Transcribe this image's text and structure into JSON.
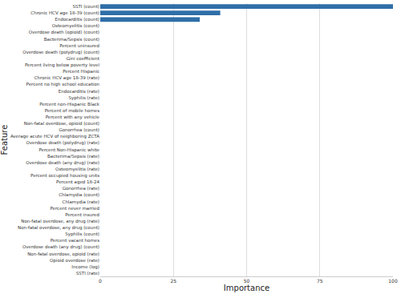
{
  "chart_data": {
    "type": "bar",
    "orientation": "horizontal",
    "x_label": "Importance",
    "y_label": "Feature",
    "categories": [
      "SSTI (count)",
      "Chronic HCV age 18-39 (count)",
      "Endocarditis (count)",
      "Osteomyelitis (count)",
      "Overdose death (opioid) (count)",
      "Bacterima/Sepsis (count)",
      "Percent uninsured",
      "Overdose death (polydrug) (count)",
      "Gini coefficient",
      "Percent living below poverty level",
      "Percent Hispanic",
      "Chronic HCV age 18-39 (rate)",
      "Percent no high school education",
      "Endocarditis (rate)",
      "Syphilis (rate)",
      "Percent non-Hispanic Black",
      "Percent of mobile homes",
      "Percent with any vehicle",
      "Non-fatal overdose, opioid (count)",
      "Gonorrhea (count)",
      "Average acute HCV of neighboring ZCTA",
      "Overdose death (polydrug) (rate)",
      "Percent Non-Hispanic white",
      "Bacterima/Sepsis (rate)",
      "Overdose death (any drug) (rate)",
      "Osteomyelitis (rate)",
      "Percent occupied housing units",
      "Percent aged 18-24",
      "Gonorrhea (rate)",
      "Chlamydia (count)",
      "Chlamydia (rate)",
      "Percent never married",
      "Percent insured",
      "Non-fatal overdose, any drug (rate)",
      "Non-fatal overdose, any drug (count)",
      "Syphilis (count)",
      "Percent vacant homes",
      "Overdose death (any drug) (count)",
      "Non-fatal overdose, opioid (rate)",
      "Opioid overdose (rate)",
      "Income (log)",
      "SSTI (rate)"
    ],
    "values": [
      100,
      41,
      34,
      0,
      0,
      0,
      0,
      0,
      0,
      0,
      0,
      0,
      0,
      0,
      0,
      0,
      0,
      0,
      0,
      0,
      0,
      0,
      0,
      0,
      0,
      0,
      0,
      0,
      0,
      0,
      0,
      0,
      0,
      0,
      0,
      0,
      0,
      0,
      0,
      0,
      0,
      0
    ],
    "color": "#2f6ea8",
    "xlim": [
      0,
      100
    ],
    "xticks": [
      0,
      25,
      50,
      75,
      100
    ],
    "grid": true
  }
}
